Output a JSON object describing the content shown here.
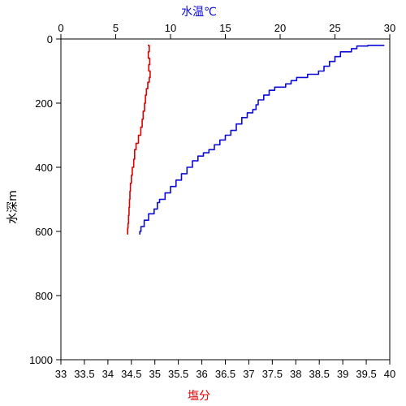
{
  "chart_data": {
    "type": "line",
    "y_axis": {
      "label": "水深m",
      "range": [
        0,
        1000
      ],
      "ticks": [
        0,
        200,
        400,
        600,
        800,
        1000
      ],
      "inverted": true
    },
    "x_top_axis": {
      "label": "水温℃",
      "range": [
        0,
        30
      ],
      "ticks": [
        0,
        5,
        10,
        15,
        20,
        25,
        30
      ],
      "color": "#0b0bd8"
    },
    "x_bottom_axis": {
      "label": "塩分",
      "range": [
        33,
        40
      ],
      "ticks": [
        "33",
        "33.5",
        "34",
        "34.5",
        "35",
        "35.5",
        "36",
        "36.5",
        "37",
        "37.5",
        "38",
        "38.5",
        "39",
        "39.5",
        "40"
      ],
      "color": "#dd0000"
    },
    "grid": false,
    "series": [
      {
        "axis": "top",
        "color": "#0b0bd8",
        "points": [
          [
            29.5,
            20
          ],
          [
            28,
            22
          ],
          [
            27,
            30
          ],
          [
            26.5,
            40
          ],
          [
            25.5,
            55
          ],
          [
            25,
            70
          ],
          [
            24.5,
            85
          ],
          [
            24,
            100
          ],
          [
            23.5,
            110
          ],
          [
            22.5,
            120
          ],
          [
            21.5,
            130
          ],
          [
            21,
            140
          ],
          [
            20.5,
            150
          ],
          [
            19.5,
            160
          ],
          [
            19,
            175
          ],
          [
            18.5,
            190
          ],
          [
            18,
            205
          ],
          [
            17.8,
            220
          ],
          [
            17.5,
            230
          ],
          [
            17,
            245
          ],
          [
            16.5,
            265
          ],
          [
            16,
            285
          ],
          [
            15.5,
            300
          ],
          [
            15,
            315
          ],
          [
            14.5,
            330
          ],
          [
            14,
            345
          ],
          [
            13.5,
            355
          ],
          [
            13,
            365
          ],
          [
            12.5,
            380
          ],
          [
            12,
            400
          ],
          [
            11.5,
            420
          ],
          [
            11,
            440
          ],
          [
            10.5,
            460
          ],
          [
            10,
            480
          ],
          [
            9.5,
            500
          ],
          [
            9,
            510
          ],
          [
            8.8,
            530
          ],
          [
            8.5,
            545
          ],
          [
            8,
            565
          ],
          [
            7.6,
            585
          ],
          [
            7.3,
            600
          ],
          [
            7.2,
            610
          ]
        ]
      },
      {
        "axis": "bottom",
        "color": "#dd0000",
        "points": [
          [
            34.85,
            20
          ],
          [
            34.88,
            40
          ],
          [
            34.86,
            60
          ],
          [
            34.89,
            80
          ],
          [
            34.87,
            100
          ],
          [
            34.9,
            120
          ],
          [
            34.88,
            135
          ],
          [
            34.85,
            155
          ],
          [
            34.82,
            175
          ],
          [
            34.8,
            200
          ],
          [
            34.78,
            225
          ],
          [
            34.75,
            250
          ],
          [
            34.73,
            275
          ],
          [
            34.7,
            300
          ],
          [
            34.65,
            325
          ],
          [
            34.6,
            345
          ],
          [
            34.57,
            375
          ],
          [
            34.55,
            400
          ],
          [
            34.52,
            425
          ],
          [
            34.5,
            450
          ],
          [
            34.48,
            475
          ],
          [
            34.47,
            500
          ],
          [
            34.46,
            525
          ],
          [
            34.45,
            550
          ],
          [
            34.44,
            575
          ],
          [
            34.43,
            590
          ],
          [
            34.42,
            610
          ]
        ]
      }
    ]
  }
}
